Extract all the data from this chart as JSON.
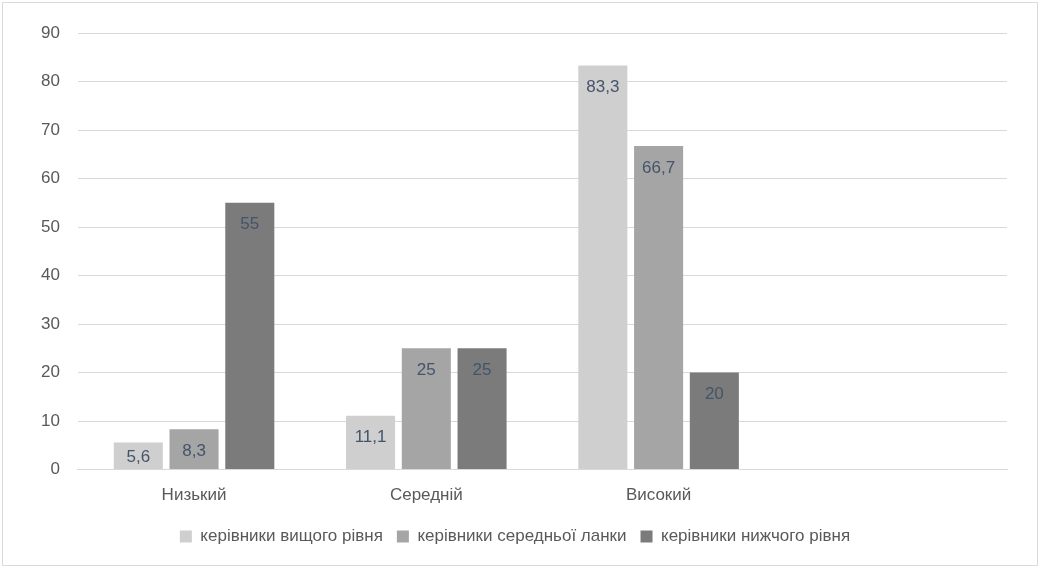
{
  "chart_data": {
    "type": "bar",
    "categories": [
      "Низький",
      "Середній",
      "Високий",
      null
    ],
    "series": [
      {
        "name": "керівники вищого рівня",
        "color": "#cfcfcf",
        "values": [
          5.6,
          11.1,
          83.3,
          null
        ],
        "value_labels": [
          "5,6",
          "11,1",
          "83,3",
          null
        ]
      },
      {
        "name": "керівники середньої ланки",
        "color": "#a5a5a5",
        "values": [
          8.3,
          25,
          66.7,
          null
        ],
        "value_labels": [
          "8,3",
          "25",
          "66,7",
          null
        ]
      },
      {
        "name": "керівники нижчого рівня",
        "color": "#7b7b7b",
        "values": [
          55,
          25,
          20,
          null
        ],
        "value_labels": [
          "55",
          "25",
          "20",
          null
        ]
      }
    ],
    "ylim": [
      0,
      90
    ],
    "yticks": [
      0,
      10,
      20,
      30,
      40,
      50,
      60,
      70,
      80,
      90
    ],
    "grid": "y",
    "legend": "bottom"
  }
}
